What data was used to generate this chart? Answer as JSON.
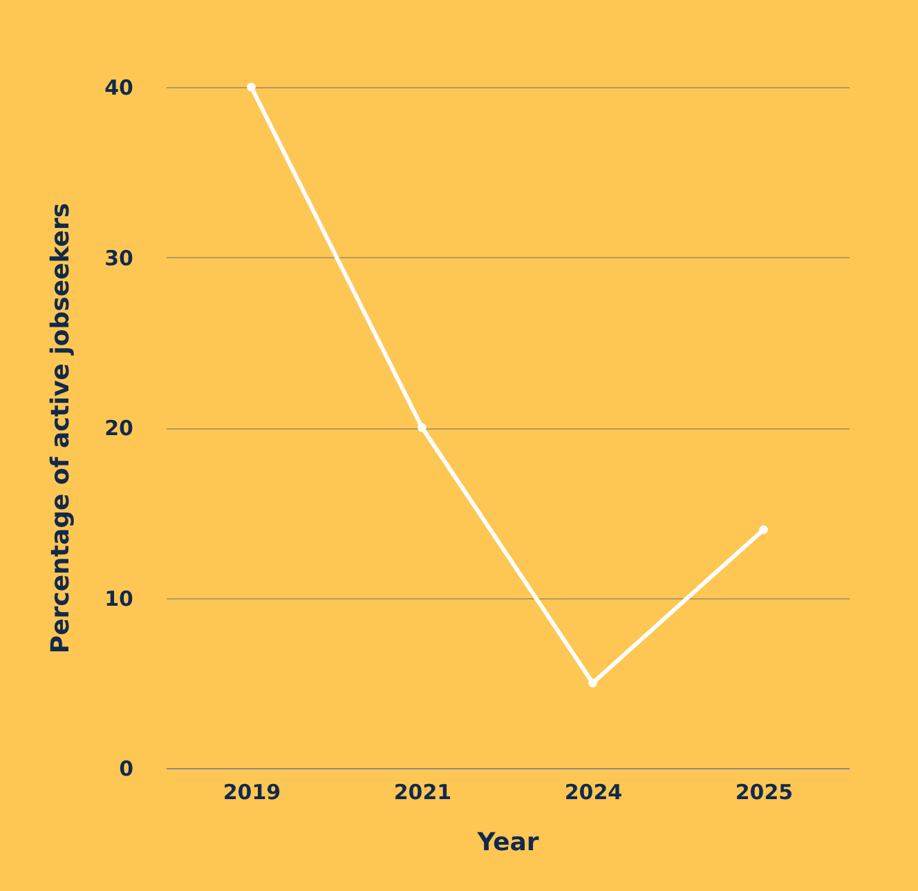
{
  "chart_data": {
    "type": "line",
    "categories": [
      "2019",
      "2021",
      "2024",
      "2025"
    ],
    "series": [
      {
        "color": "#ffffff",
        "values": [
          40,
          20,
          5,
          14
        ]
      }
    ],
    "xlabel": "Year",
    "ylabel": "Percentage of active jobseekers",
    "ylim": [
      0,
      40
    ],
    "yticks": [
      0,
      10,
      20,
      30,
      40
    ],
    "grid": "y",
    "marker": "circle",
    "line_style": "solid"
  }
}
